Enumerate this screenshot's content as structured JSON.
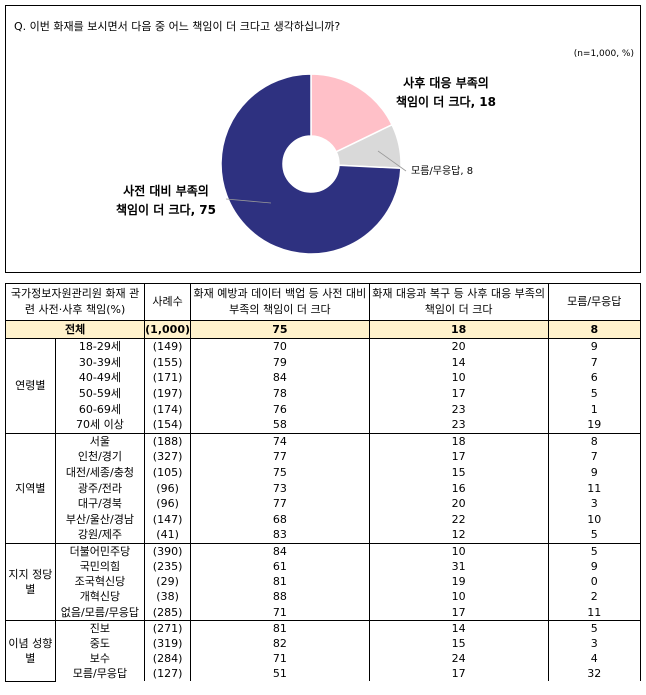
{
  "question": "Q. 이번 화재를 보시면서 다음 중 어느 책임이 더 크다고 생각하십니까?",
  "note": "(n=1,000, %)",
  "chart_data": {
    "type": "pie",
    "donut": true,
    "slices": [
      {
        "label": "사후 대응 부족의 책임이 더 크다",
        "label_line1": "사후 대응 부족의",
        "label_line2": "책임이 더 크다, 18",
        "value": 18,
        "color": "#FFC0C8"
      },
      {
        "label": "모름/무응답",
        "label_line1": "모름/무응답, 8",
        "value": 8,
        "color": "#D9D9D9"
      },
      {
        "label": "사전 대비 부족의 책임이 더 크다",
        "label_line1": "사전 대비 부족의",
        "label_line2": "책임이 더 크다, 75",
        "value": 75,
        "color": "#2E3180"
      }
    ]
  },
  "table": {
    "headers": [
      "국가정보자원관리원 화재 관련 사전·사후 책임(%)",
      "사례수",
      "화재 예방과 데이터 백업 등 사전 대비 부족의 책임이 더 크다",
      "화재 대응과 복구 등 사후 대응 부족의 책임이 더 크다",
      "모름/무응답"
    ],
    "total": {
      "label": "전체",
      "n": "(1,000)",
      "v": [
        "75",
        "18",
        "8"
      ]
    },
    "groups": [
      {
        "name": "연령별",
        "rows": [
          [
            "18-29세",
            "(149)",
            "70",
            "20",
            "9"
          ],
          [
            "30-39세",
            "(155)",
            "79",
            "14",
            "7"
          ],
          [
            "40-49세",
            "(171)",
            "84",
            "10",
            "6"
          ],
          [
            "50-59세",
            "(197)",
            "78",
            "17",
            "5"
          ],
          [
            "60-69세",
            "(174)",
            "76",
            "23",
            "1"
          ],
          [
            "70세 이상",
            "(154)",
            "58",
            "23",
            "19"
          ]
        ]
      },
      {
        "name": "지역별",
        "rows": [
          [
            "서울",
            "(188)",
            "74",
            "18",
            "8"
          ],
          [
            "인천/경기",
            "(327)",
            "77",
            "17",
            "7"
          ],
          [
            "대전/세종/충청",
            "(105)",
            "75",
            "15",
            "9"
          ],
          [
            "광주/전라",
            "(96)",
            "73",
            "16",
            "11"
          ],
          [
            "대구/경북",
            "(96)",
            "77",
            "20",
            "3"
          ],
          [
            "부산/울산/경남",
            "(147)",
            "68",
            "22",
            "10"
          ],
          [
            "강원/제주",
            "(41)",
            "83",
            "12",
            "5"
          ]
        ]
      },
      {
        "name": "지지 정당별",
        "rows": [
          [
            "더불어민주당",
            "(390)",
            "84",
            "10",
            "5"
          ],
          [
            "국민의힘",
            "(235)",
            "61",
            "31",
            "9"
          ],
          [
            "조국혁신당",
            "(29)",
            "81",
            "19",
            "0"
          ],
          [
            "개혁신당",
            "(38)",
            "88",
            "10",
            "2"
          ],
          [
            "없음/모름/무응답",
            "(285)",
            "71",
            "17",
            "11"
          ]
        ]
      },
      {
        "name": "이념 성향별",
        "rows": [
          [
            "진보",
            "(271)",
            "81",
            "14",
            "5"
          ],
          [
            "중도",
            "(319)",
            "82",
            "15",
            "3"
          ],
          [
            "보수",
            "(284)",
            "71",
            "24",
            "4"
          ],
          [
            "모름/무응답",
            "(127)",
            "51",
            "17",
            "32"
          ]
        ]
      }
    ]
  }
}
